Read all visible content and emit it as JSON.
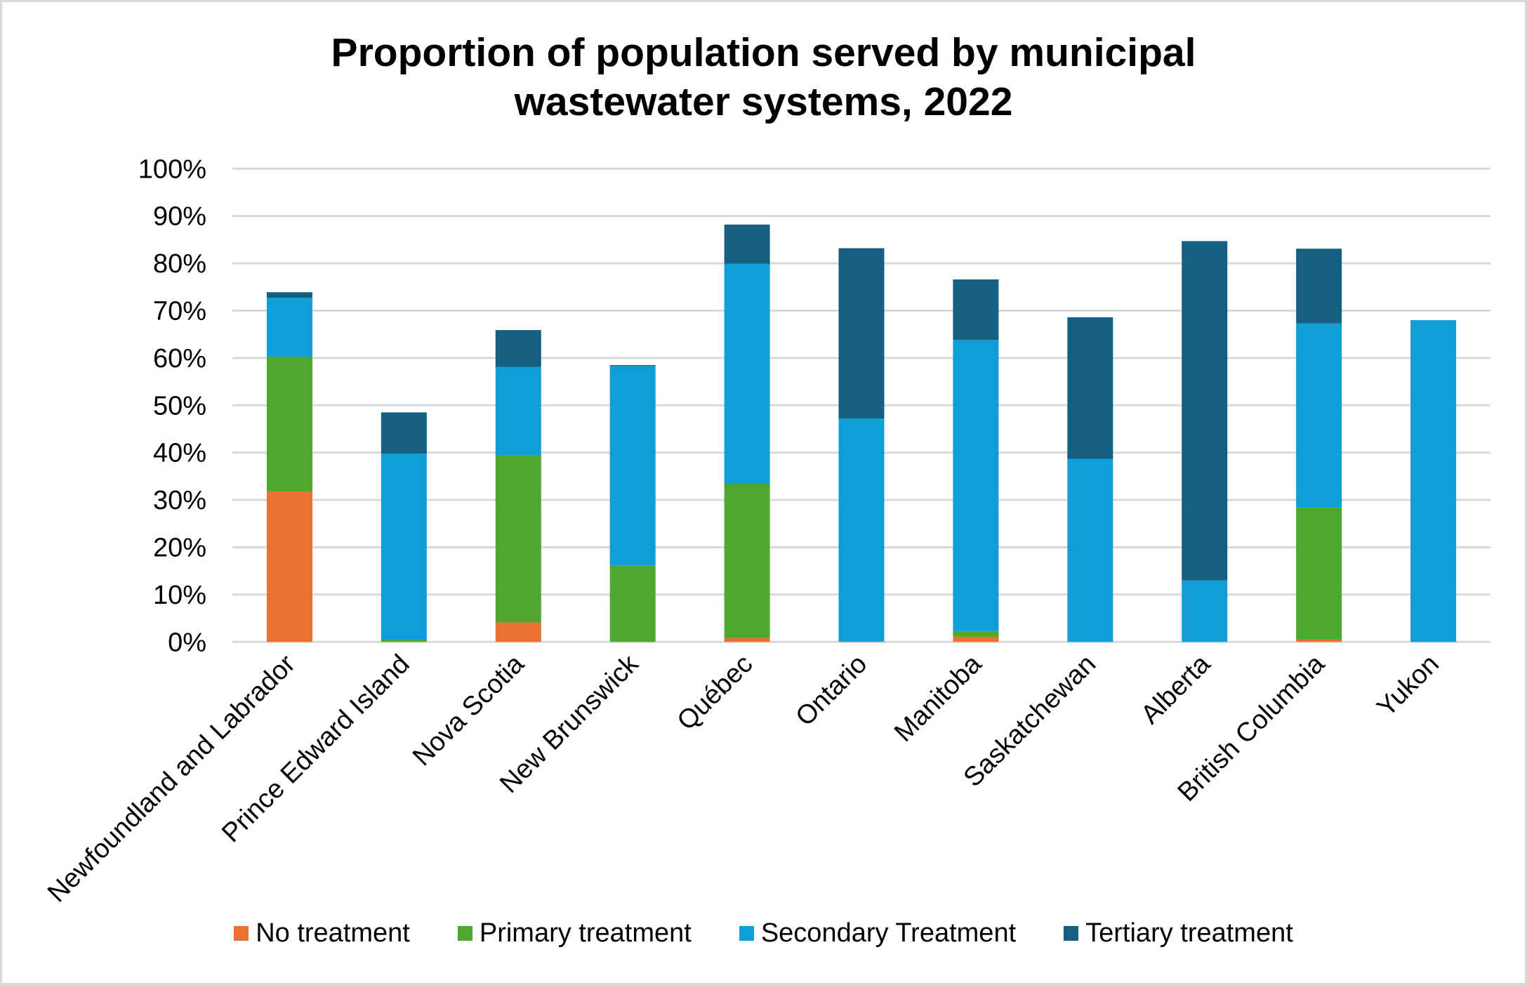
{
  "chart_data": {
    "type": "bar",
    "stacked": true,
    "title": "Proportion of population served by municipal wastewater systems, 2022",
    "title_lines": [
      "Proportion of population served by municipal",
      "wastewater systems, 2022"
    ],
    "xlabel": "",
    "ylabel": "",
    "ylim": [
      0,
      100
    ],
    "y_ticks": [
      0,
      10,
      20,
      30,
      40,
      50,
      60,
      70,
      80,
      90,
      100
    ],
    "y_tick_labels": [
      "0%",
      "10%",
      "20%",
      "30%",
      "40%",
      "50%",
      "60%",
      "70%",
      "80%",
      "90%",
      "100%"
    ],
    "grid": true,
    "legend_position": "bottom",
    "categories": [
      "Newfoundland and Labrador",
      "Prince Edward Island",
      "Nova Scotia",
      "New Brunswick",
      "Québec",
      "Ontario",
      "Manitoba",
      "Saskatchewan",
      "Alberta",
      "British Columbia",
      "Yukon"
    ],
    "series": [
      {
        "name": "No treatment",
        "color": "#e97132",
        "values": [
          31.8,
          0,
          4.1,
          0,
          0.8,
          0,
          1.1,
          0,
          0,
          0.5,
          0
        ]
      },
      {
        "name": "Primary treatment",
        "color": "#4ea72e",
        "values": [
          28.4,
          0.5,
          35.4,
          16.1,
          32.7,
          0.2,
          1.2,
          0,
          0,
          27.9,
          0
        ]
      },
      {
        "name": "Secondary Treatment",
        "color": "#0f9ed5",
        "values": [
          12.5,
          39.3,
          18.6,
          42.2,
          46.4,
          47.0,
          61.5,
          38.7,
          13.0,
          38.9,
          68.0
        ]
      },
      {
        "name": "Tertiary treatment",
        "color": "#156082",
        "values": [
          1.2,
          8.7,
          7.8,
          0.2,
          8.3,
          36.0,
          12.8,
          29.9,
          71.7,
          15.8,
          0
        ]
      }
    ]
  },
  "colors": {
    "gridline": "#d9d9d9",
    "frame": "#d9d9d9",
    "text": "#000000"
  }
}
